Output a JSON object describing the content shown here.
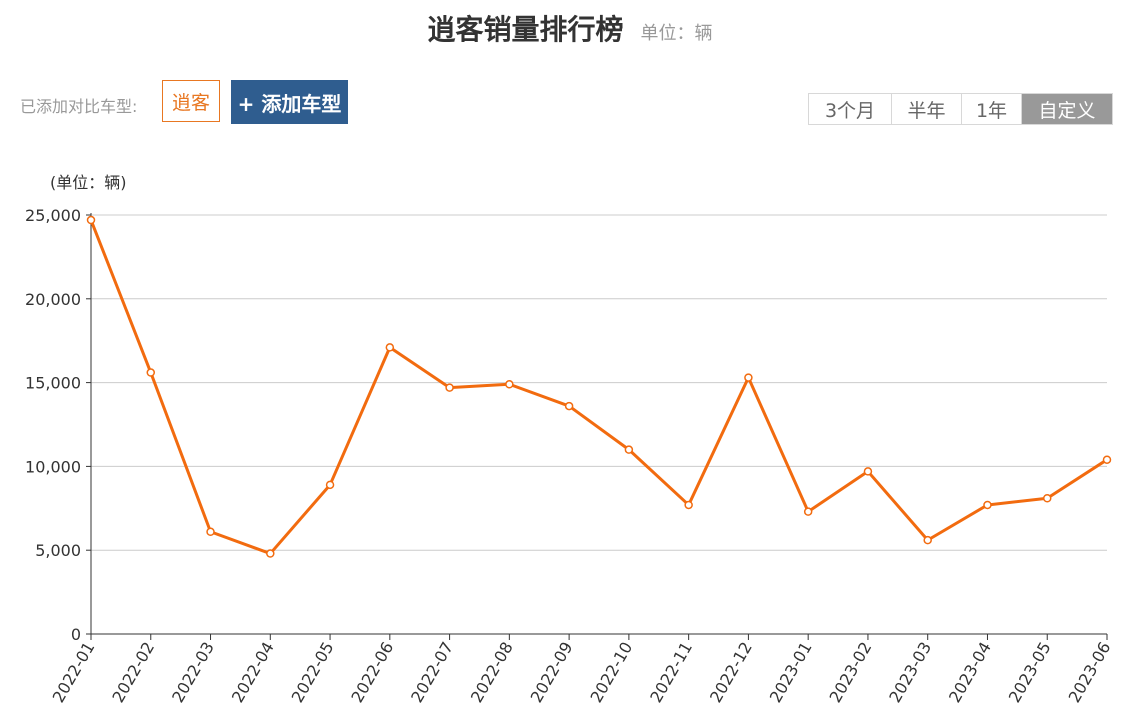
{
  "header": {
    "title": "逍客销量排行榜",
    "unit": "单位：辆"
  },
  "compare": {
    "label": "已添加对比车型:",
    "models": [
      "逍客"
    ],
    "add_button": "+ 添加车型"
  },
  "time_ranges": [
    {
      "label": "3个月",
      "active": false
    },
    {
      "label": "半年",
      "active": false
    },
    {
      "label": "1年",
      "active": false
    },
    {
      "label": "自定义",
      "active": true
    }
  ],
  "colors": {
    "line": "#f26b0f",
    "accent_orange": "#e87722",
    "button_blue": "#2f5d8f",
    "active_range": "#999999"
  },
  "chart_data": {
    "type": "line",
    "ylabel": "(单位：辆)",
    "ylim": [
      0,
      25000
    ],
    "yticks": [
      "0",
      "5,000",
      "10,000",
      "15,000",
      "20,000",
      "25,000"
    ],
    "grid": true,
    "categories": [
      "2022-01",
      "2022-02",
      "2022-03",
      "2022-04",
      "2022-05",
      "2022-06",
      "2022-07",
      "2022-08",
      "2022-09",
      "2022-10",
      "2022-11",
      "2022-12",
      "2023-01",
      "2023-02",
      "2023-03",
      "2023-04",
      "2023-05",
      "2023-06"
    ],
    "series": [
      {
        "values": [
          24700,
          15600,
          6100,
          4800,
          8900,
          17100,
          14700,
          14900,
          13600,
          11000,
          7700,
          15300,
          7300,
          9700,
          5600,
          7700,
          8100,
          10400
        ]
      }
    ]
  }
}
